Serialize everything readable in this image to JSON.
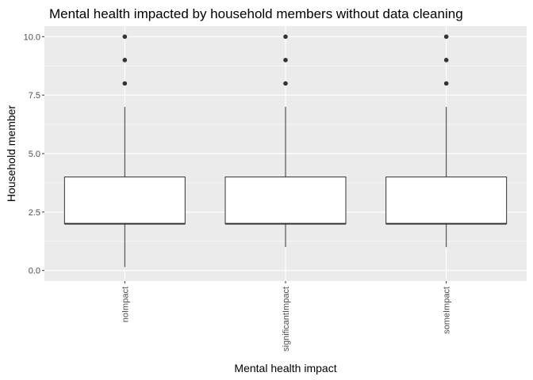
{
  "chart_data": {
    "type": "box",
    "title": "Mental health impacted by household members without data cleaning",
    "xlabel": "Mental health impact",
    "ylabel": "Household member",
    "ylim": [
      -0.45,
      10.45
    ],
    "yticks": [
      0,
      2.5,
      5,
      7.5,
      10
    ],
    "ytick_labels": [
      "0.0",
      "2.5",
      "5.0",
      "7.5",
      "10.0"
    ],
    "grid": true,
    "categories": [
      "noImpact",
      "significantImpact",
      "someImpact"
    ],
    "boxes": [
      {
        "category": "noImpact",
        "whisker_low": 0.15,
        "q1": 2,
        "median": 2,
        "q3": 4,
        "whisker_high": 7,
        "outliers": [
          8,
          9,
          10
        ]
      },
      {
        "category": "significantImpact",
        "whisker_low": 1,
        "q1": 2,
        "median": 2,
        "q3": 4,
        "whisker_high": 7,
        "outliers": [
          8,
          9,
          10
        ]
      },
      {
        "category": "someImpact",
        "whisker_low": 1,
        "q1": 2,
        "median": 2,
        "q3": 4,
        "whisker_high": 7,
        "outliers": [
          8,
          9,
          10
        ]
      }
    ],
    "colors": {
      "panel": "#EBEBEB",
      "grid_major": "#FFFFFF",
      "box_fill": "#FFFFFF",
      "box_line": "#333333",
      "outlier": "#333333",
      "tick": "#333333"
    }
  }
}
